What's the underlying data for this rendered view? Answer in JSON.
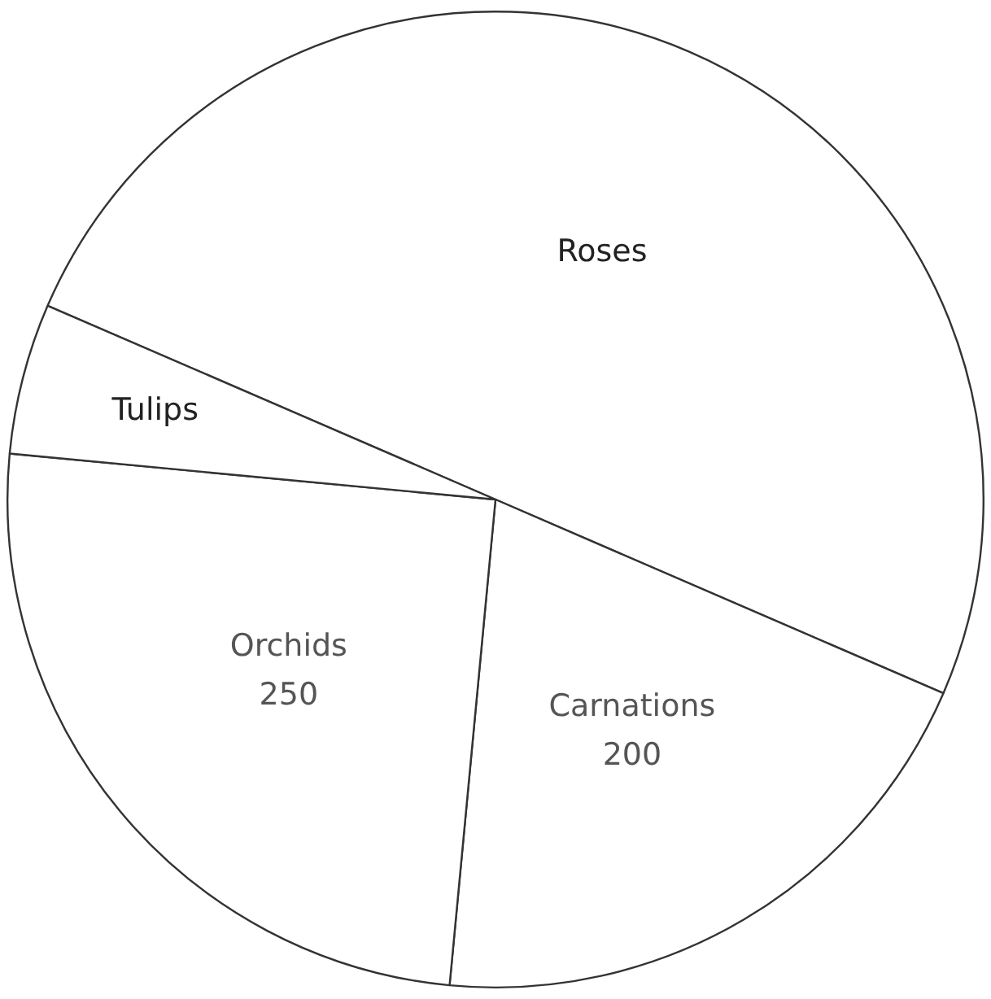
{
  "chart_data": {
    "type": "pie",
    "categories": [
      "Roses",
      "Carnations",
      "Orchids",
      "Tulips"
    ],
    "values": [
      500,
      200,
      250,
      50
    ],
    "value_labels": [
      null,
      "200",
      "250",
      null
    ],
    "colors": [
      "#ffffff",
      "#ffffff",
      "#ffffff",
      "#ffffff"
    ],
    "legend": false
  }
}
